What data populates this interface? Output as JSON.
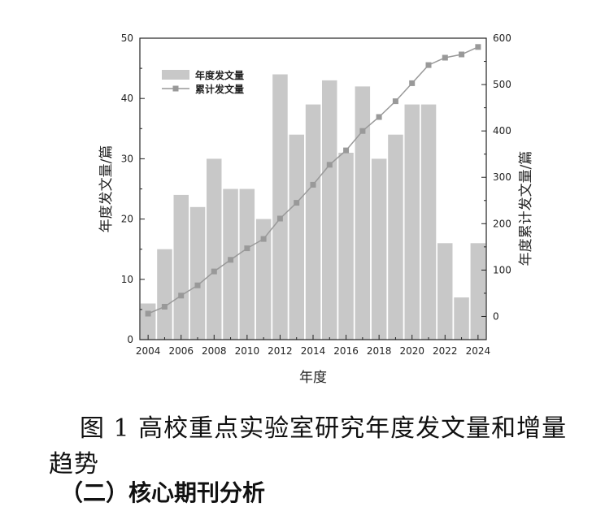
{
  "figure": {
    "caption": "图 1  高校重点实验室研究年度发文量和增量趋势",
    "next_heading_fragment": "（二）核心期刊分析"
  },
  "chart_data": {
    "type": "bar",
    "xlabel": "年度",
    "ylabel": "年度发文量/篇",
    "ylabel_right": "年度累计发文量/篇",
    "x_tick_labels": [
      "2004",
      "2006",
      "2008",
      "2010",
      "2012",
      "2014",
      "2016",
      "2018",
      "2020",
      "2022",
      "2024"
    ],
    "y_ticks": [
      "0",
      "10",
      "20",
      "30",
      "40",
      "50"
    ],
    "y2_ticks": [
      "0",
      "100",
      "200",
      "300",
      "400",
      "500",
      "600"
    ],
    "ylim": [
      0,
      50
    ],
    "y2lim": [
      -50,
      600
    ],
    "legend_position": "top-left",
    "grid": false,
    "categories": [
      2004,
      2005,
      2006,
      2007,
      2008,
      2009,
      2010,
      2011,
      2012,
      2013,
      2014,
      2015,
      2016,
      2017,
      2018,
      2019,
      2020,
      2021,
      2022,
      2023,
      2024
    ],
    "series": [
      {
        "name": "年度发文量",
        "axis": "left",
        "chart": "bar",
        "color": "#c8c8c8",
        "values": [
          6,
          15,
          24,
          22,
          30,
          25,
          25,
          20,
          44,
          34,
          39,
          43,
          31,
          42,
          30,
          34,
          39,
          39,
          16,
          7,
          16
        ]
      },
      {
        "name": "累计发文量",
        "axis": "right",
        "chart": "line",
        "color": "#999999",
        "values": [
          6,
          21,
          45,
          67,
          97,
          122,
          147,
          167,
          211,
          245,
          284,
          327,
          358,
          400,
          430,
          464,
          503,
          542,
          558,
          565,
          581
        ]
      }
    ]
  }
}
